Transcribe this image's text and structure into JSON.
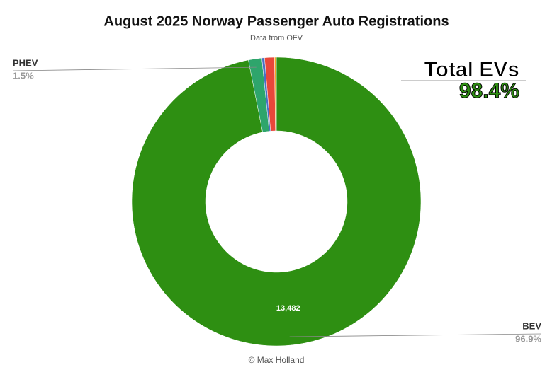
{
  "chart_data": {
    "type": "donut",
    "title": "August 2025 Norway Passenger Auto Registrations",
    "subtitle": "Data from OFV",
    "footer": "© Max Holland",
    "annotation": {
      "title": "Total EVs",
      "value": "98.4%"
    },
    "categories": [
      "BEV",
      "PHEV",
      null,
      null,
      null
    ],
    "values": [
      13482,
      209,
      42,
      153,
      28
    ],
    "value_labels": [
      "13,482",
      null,
      null,
      null,
      null
    ],
    "percent_labels": [
      "96.9%",
      "1.5%",
      null,
      null,
      null
    ],
    "colors": [
      "#2e8f12",
      "#2ea56c",
      "#4a6fc6",
      "#e8473a",
      "#f5a524"
    ]
  }
}
